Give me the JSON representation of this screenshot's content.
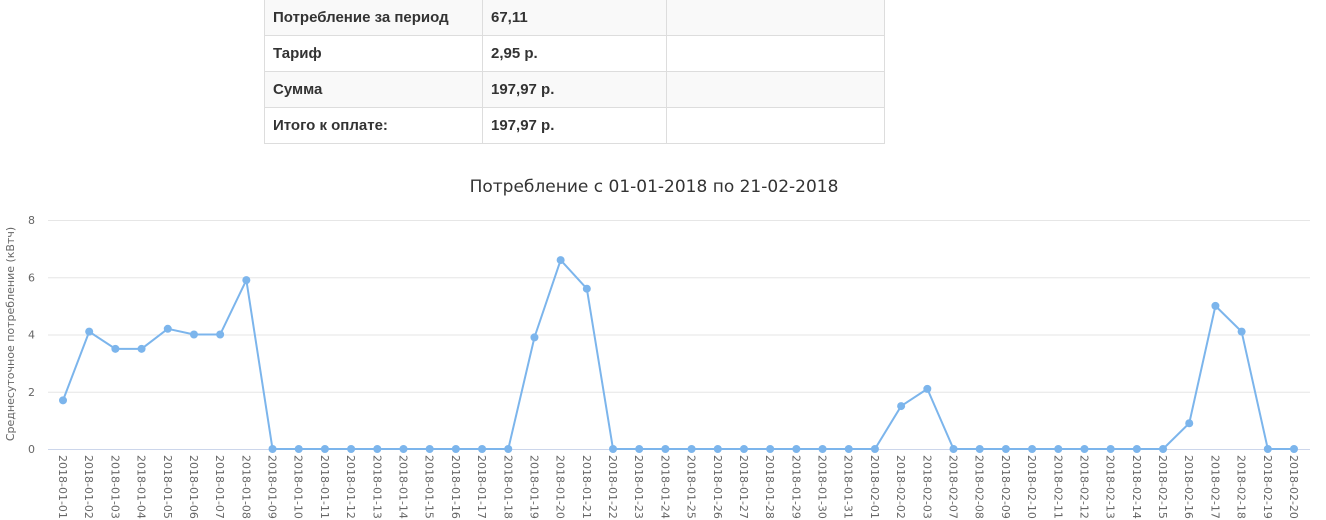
{
  "table": {
    "rows": [
      [
        "Потребление за период",
        "67,11"
      ],
      [
        "Тариф",
        "2,95 р."
      ],
      [
        "Сумма",
        "197,97 р."
      ],
      [
        "Итого к оплате:",
        "197,97 р."
      ]
    ]
  },
  "chart_data": {
    "type": "line",
    "title": "Потребление с 01-01-2018 по 21-02-2018",
    "y_label": "Среднесуточное потребление (кВтч)",
    "categories": [
      "2018-01-01",
      "2018-01-02",
      "2018-01-03",
      "2018-01-04",
      "2018-01-05",
      "2018-01-06",
      "2018-01-07",
      "2018-01-08",
      "2018-01-09",
      "2018-01-10",
      "2018-01-11",
      "2018-01-12",
      "2018-01-13",
      "2018-01-14",
      "2018-01-15",
      "2018-01-16",
      "2018-01-17",
      "2018-01-18",
      "2018-01-19",
      "2018-01-20",
      "2018-01-21",
      "2018-01-22",
      "2018-01-23",
      "2018-01-24",
      "2018-01-25",
      "2018-01-26",
      "2018-01-27",
      "2018-01-28",
      "2018-01-29",
      "2018-01-30",
      "2018-01-31",
      "2018-02-01",
      "2018-02-02",
      "2018-02-03",
      "2018-02-07",
      "2018-02-08",
      "2018-02-09",
      "2018-02-10",
      "2018-02-11",
      "2018-02-12",
      "2018-02-13",
      "2018-02-14",
      "2018-02-15",
      "2018-02-16",
      "2018-02-17",
      "2018-02-18",
      "2018-02-19",
      "2018-02-20"
    ],
    "values": [
      1.7,
      4.1,
      3.5,
      3.5,
      4.2,
      4.0,
      4.0,
      5.9,
      0,
      0,
      0,
      0,
      0,
      0,
      0,
      0,
      0,
      0,
      3.9,
      6.6,
      5.6,
      0,
      0,
      0,
      0,
      0,
      0,
      0,
      0,
      0,
      0,
      0,
      1.5,
      2.1,
      0,
      0,
      0,
      0,
      0,
      0,
      0,
      0,
      0,
      0.9,
      5.0,
      4.1,
      0,
      0
    ],
    "color": "#7cb5ec",
    "ylim": [
      0,
      8
    ],
    "yticks": [
      0,
      2,
      4,
      6,
      8
    ],
    "grid": true
  }
}
